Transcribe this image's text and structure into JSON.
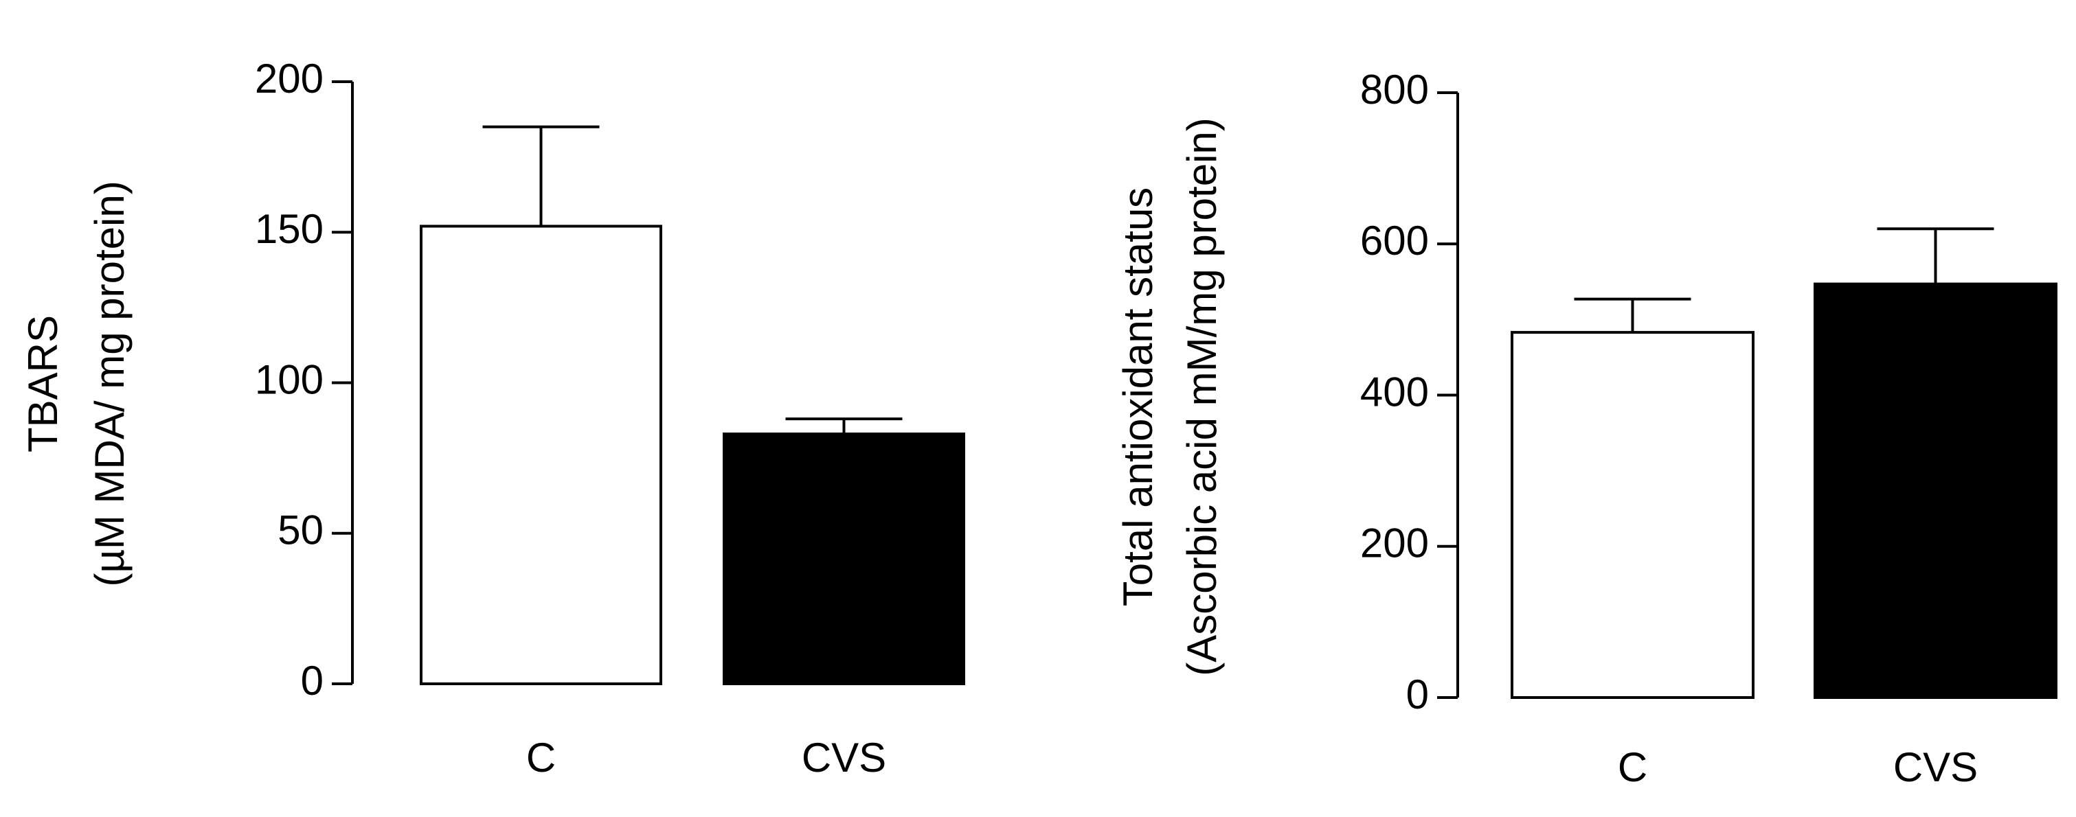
{
  "chart_data": [
    {
      "type": "bar",
      "ylabel": [
        "TBARS",
        "(µM MDA/ mg protein)"
      ],
      "categories": [
        "C",
        "CVS"
      ],
      "values": [
        152,
        83
      ],
      "errors": [
        33,
        5
      ],
      "colors": [
        "#ffffff",
        "#000000"
      ],
      "ylim": [
        0,
        200
      ],
      "yticks": [
        0,
        50,
        100,
        150,
        200
      ]
    },
    {
      "type": "bar",
      "ylabel": [
        "Total antioxidant status",
        "(Ascorbic acid mM/mg protein)"
      ],
      "categories": [
        "C",
        "CVS"
      ],
      "values": [
        483,
        547
      ],
      "errors": [
        44,
        73
      ],
      "colors": [
        "#ffffff",
        "#000000"
      ],
      "ylim": [
        0,
        800
      ],
      "yticks": [
        0,
        200,
        400,
        600,
        800
      ]
    }
  ]
}
